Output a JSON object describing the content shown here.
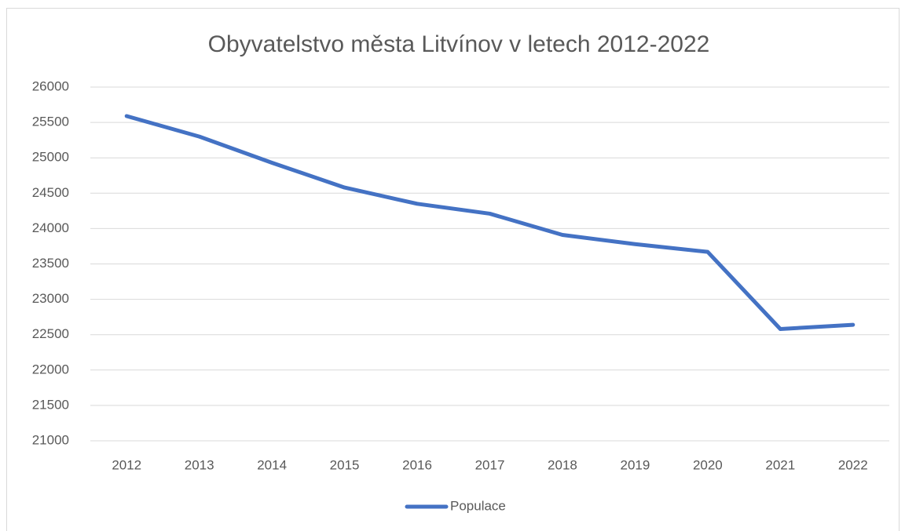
{
  "chart_data": {
    "type": "line",
    "title": "Obyvatelstvo města Litvínov v letech 2012-2022",
    "categories": [
      "2012",
      "2013",
      "2014",
      "2015",
      "2016",
      "2017",
      "2018",
      "2019",
      "2020",
      "2021",
      "2022"
    ],
    "series": [
      {
        "name": "Populace",
        "color": "#4472c4",
        "values": [
          25590,
          25300,
          24930,
          24580,
          24350,
          24210,
          23910,
          23780,
          23670,
          22580,
          22640
        ]
      }
    ],
    "ylim": [
      21000,
      26000
    ],
    "yticks": [
      21000,
      21500,
      22000,
      22500,
      23000,
      23500,
      24000,
      24500,
      25000,
      25500,
      26000
    ],
    "grid": true,
    "legend": "bottom"
  }
}
